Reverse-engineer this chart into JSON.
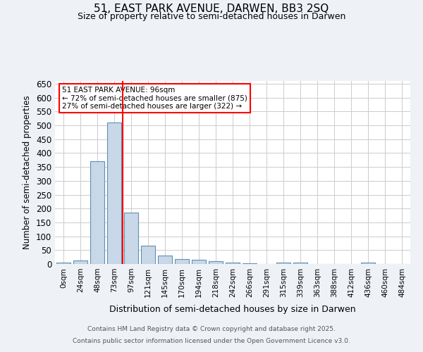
{
  "title_line1": "51, EAST PARK AVENUE, DARWEN, BB3 2SQ",
  "title_line2": "Size of property relative to semi-detached houses in Darwen",
  "xlabel": "Distribution of semi-detached houses by size in Darwen",
  "ylabel": "Number of semi-detached properties",
  "bar_labels": [
    "0sqm",
    "24sqm",
    "48sqm",
    "73sqm",
    "97sqm",
    "121sqm",
    "145sqm",
    "170sqm",
    "194sqm",
    "218sqm",
    "242sqm",
    "266sqm",
    "291sqm",
    "315sqm",
    "339sqm",
    "363sqm",
    "388sqm",
    "412sqm",
    "436sqm",
    "460sqm",
    "484sqm"
  ],
  "bar_values": [
    5,
    13,
    370,
    510,
    185,
    65,
    30,
    18,
    15,
    10,
    5,
    3,
    0,
    5,
    5,
    0,
    0,
    0,
    5,
    0,
    0
  ],
  "bar_color": "#c8d8e8",
  "bar_edge_color": "#6090b0",
  "annotation_title": "51 EAST PARK AVENUE: 96sqm",
  "annotation_line1": "← 72% of semi-detached houses are smaller (875)",
  "annotation_line2": "27% of semi-detached houses are larger (322) →",
  "red_line_x": 3.5,
  "ylim": [
    0,
    660
  ],
  "yticks": [
    0,
    50,
    100,
    150,
    200,
    250,
    300,
    350,
    400,
    450,
    500,
    550,
    600,
    650
  ],
  "footer_line1": "Contains HM Land Registry data © Crown copyright and database right 2025.",
  "footer_line2": "Contains public sector information licensed under the Open Government Licence v3.0.",
  "background_color": "#eef2f7",
  "plot_bg_color": "#ffffff",
  "grid_color": "#cccccc"
}
